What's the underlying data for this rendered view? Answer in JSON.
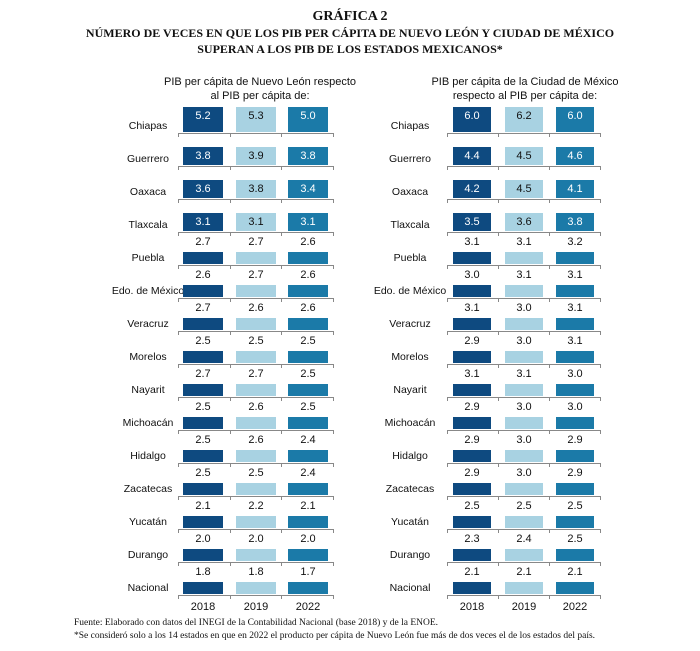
{
  "title": {
    "line1": "GRÁFICA 2",
    "line2": "NÚMERO DE VECES EN QUE LOS PIB PER CÁPITA DE NUEVO LEÓN Y CIUDAD DE MÉXICO",
    "line3": "SUPERAN A LOS PIB DE LOS ESTADOS MEXICANOS*"
  },
  "footnotes": {
    "source": "Fuente: Elaborado con datos del INEGI de la Contabilidad Nacional (base 2018) y de la ENOE.",
    "note": "*Se consideró solo a los 14 estados en que en 2022 el producto per cápita de Nuevo León fue más de dos veces el de los estados del país."
  },
  "colors": {
    "2018": "#0e4a80",
    "2019": "#a8d2e2",
    "2022": "#1b7aa8"
  },
  "chart_data": [
    {
      "type": "table",
      "title": "PIB per cápita de Nuevo León respecto al PIB per cápita de:",
      "categories": [
        "Chiapas",
        "Guerrero",
        "Oaxaca",
        "Tlaxcala",
        "Puebla",
        "Edo. de México",
        "Veracruz",
        "Morelos",
        "Nayarit",
        "Michoacán",
        "Hidalgo",
        "Zacatecas",
        "Yucatán",
        "Durango",
        "Nacional"
      ],
      "series": [
        {
          "name": "2018",
          "values": [
            "5.2",
            "3.8",
            "3.6",
            "3.1",
            "2.7",
            "2.6",
            "2.7",
            "2.5",
            "2.7",
            "2.5",
            "2.5",
            "2.5",
            "2.1",
            "2.0",
            "1.8"
          ]
        },
        {
          "name": "2019",
          "values": [
            "5.3",
            "3.9",
            "3.8",
            "3.1",
            "2.7",
            "2.7",
            "2.6",
            "2.5",
            "2.7",
            "2.6",
            "2.6",
            "2.5",
            "2.2",
            "2.0",
            "1.8"
          ]
        },
        {
          "name": "2022",
          "values": [
            "5.0",
            "3.8",
            "3.4",
            "3.1",
            "2.6",
            "2.6",
            "2.6",
            "2.5",
            "2.5",
            "2.5",
            "2.4",
            "2.4",
            "2.1",
            "2.0",
            "1.7"
          ]
        }
      ]
    },
    {
      "type": "table",
      "title": "PIB per cápita de la Ciudad de México respecto al PIB per cápita de:",
      "categories": [
        "Chiapas",
        "Guerrero",
        "Oaxaca",
        "Tlaxcala",
        "Puebla",
        "Edo. de México",
        "Veracruz",
        "Morelos",
        "Nayarit",
        "Michoacán",
        "Hidalgo",
        "Zacatecas",
        "Yucatán",
        "Durango",
        "Nacional"
      ],
      "series": [
        {
          "name": "2018",
          "values": [
            "6.0",
            "4.4",
            "4.2",
            "3.5",
            "3.1",
            "3.0",
            "3.1",
            "2.9",
            "3.1",
            "2.9",
            "2.9",
            "2.9",
            "2.5",
            "2.3",
            "2.1"
          ]
        },
        {
          "name": "2019",
          "values": [
            "6.2",
            "4.5",
            "4.5",
            "3.6",
            "3.1",
            "3.1",
            "3.0",
            "3.0",
            "3.1",
            "3.0",
            "3.0",
            "3.0",
            "2.5",
            "2.4",
            "2.1"
          ]
        },
        {
          "name": "2022",
          "values": [
            "6.0",
            "4.6",
            "4.1",
            "3.8",
            "3.2",
            "3.1",
            "3.1",
            "3.1",
            "3.0",
            "3.0",
            "2.9",
            "2.9",
            "2.5",
            "2.5",
            "2.1"
          ]
        }
      ]
    }
  ]
}
